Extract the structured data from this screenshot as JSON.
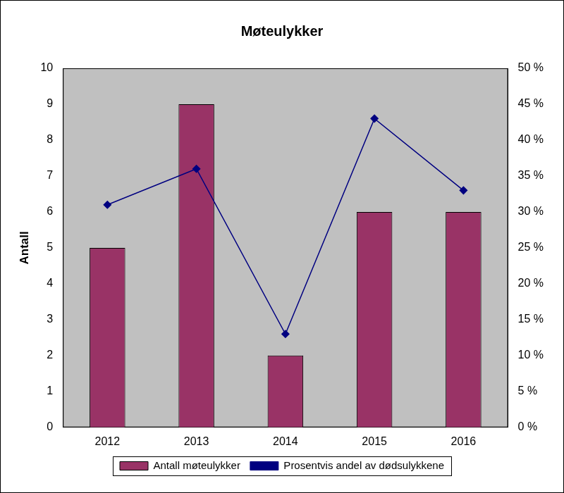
{
  "chart_data": {
    "type": "bar",
    "title": "Møteulykker",
    "y_label": "Antall",
    "categories": [
      "2012",
      "2013",
      "2014",
      "2015",
      "2016"
    ],
    "series": [
      {
        "name": "Antall møteulykker",
        "type": "bar",
        "color": "#993366",
        "values": [
          5,
          9,
          2,
          6,
          6
        ]
      },
      {
        "name": "Prosentvis andel av dødsulykkene",
        "type": "line",
        "color": "#000080",
        "marker": "diamond",
        "axis": "y2",
        "values": [
          31,
          36,
          13,
          43,
          33
        ]
      }
    ],
    "ylim": [
      0,
      10
    ],
    "yticks": [
      0,
      1,
      2,
      3,
      4,
      5,
      6,
      7,
      8,
      9,
      10
    ],
    "y2lim": [
      0,
      50
    ],
    "y2ticks": [
      {
        "value": 0,
        "label": "0 %"
      },
      {
        "value": 5,
        "label": "5 %"
      },
      {
        "value": 10,
        "label": "10 %"
      },
      {
        "value": 15,
        "label": "15 %"
      },
      {
        "value": 20,
        "label": "20 %"
      },
      {
        "value": 25,
        "label": "25 %"
      },
      {
        "value": 30,
        "label": "30 %"
      },
      {
        "value": 35,
        "label": "35 %"
      },
      {
        "value": 40,
        "label": "40 %"
      },
      {
        "value": 45,
        "label": "45 %"
      },
      {
        "value": 50,
        "label": "50 %"
      }
    ],
    "grid": false,
    "legend": "bottom"
  }
}
